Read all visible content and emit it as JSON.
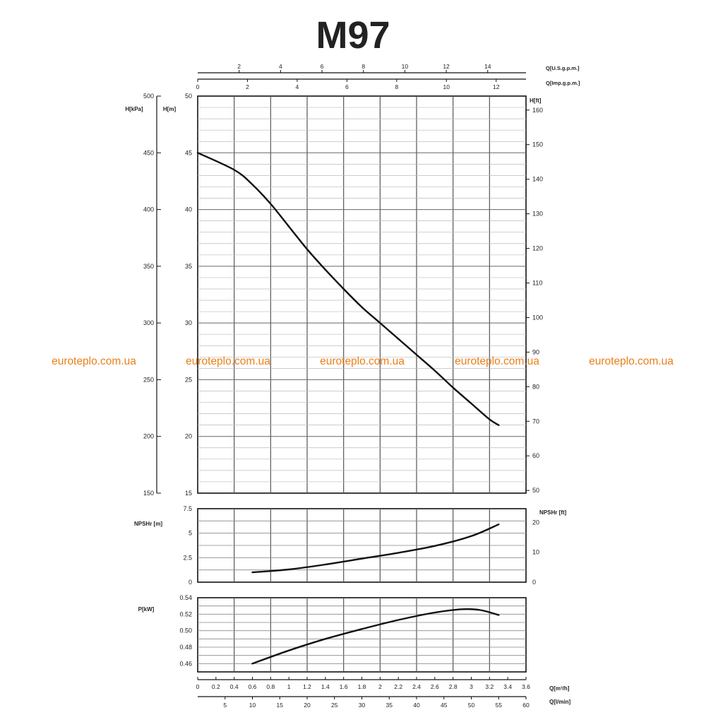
{
  "title": "M97",
  "watermarks": [
    "euroteplo.com.ua",
    "euroteplo.com.ua",
    "euroteplo.com.ua",
    "euroteplo.com.ua",
    "euroteplo.com.ua"
  ],
  "colors": {
    "watermark": "#e8801a",
    "line": "#111111",
    "grid": "#555555"
  },
  "chart_data": [
    {
      "type": "line",
      "id": "head",
      "ylabel_left_outer": "H[kPa]",
      "ylabel_left": "H[m]",
      "ylabel_right": "H[ft]",
      "ylim": [
        15,
        50
      ],
      "y_ticks": [
        "15",
        "20",
        "25",
        "30",
        "35",
        "40",
        "45",
        "50"
      ],
      "y_outer_ticks": [
        "150",
        "200",
        "250",
        "300",
        "350",
        "400",
        "450",
        "500"
      ],
      "y_right_ticks": [
        "50",
        "60",
        "70",
        "80",
        "90",
        "100",
        "110",
        "120",
        "130",
        "140",
        "150",
        "160"
      ],
      "grid": true,
      "series": [
        {
          "x": [
            0,
            0.4,
            0.6,
            0.8,
            1.0,
            1.2,
            1.4,
            1.6,
            1.8,
            2.0,
            2.2,
            2.4,
            2.6,
            2.8,
            3.0,
            3.2,
            3.3
          ],
          "y": [
            45,
            43.5,
            42.2,
            40.5,
            38.5,
            36.5,
            34.7,
            33,
            31.4,
            30,
            28.6,
            27.2,
            25.8,
            24.3,
            22.9,
            21.5,
            21
          ]
        }
      ]
    },
    {
      "type": "line",
      "id": "npsh",
      "ylabel_left": "NPSHr [m]",
      "ylabel_right": "NPSHr [ft]",
      "ylim": [
        0,
        7.5
      ],
      "y_ticks": [
        "0",
        "2.5",
        "5",
        "7.5"
      ],
      "y_right_ticks": [
        "0",
        "10",
        "20"
      ],
      "grid": true,
      "series": [
        {
          "x": [
            0.6,
            1.0,
            1.4,
            1.8,
            2.2,
            2.6,
            3.0,
            3.3
          ],
          "y": [
            1.0,
            1.3,
            1.8,
            2.4,
            3.0,
            3.7,
            4.7,
            5.9
          ]
        }
      ]
    },
    {
      "type": "line",
      "id": "power",
      "ylabel_left": "P[kW]",
      "ylim": [
        0.45,
        0.54
      ],
      "y_ticks": [
        "0.46",
        "0.48",
        "0.50",
        "0.52",
        "0.54"
      ],
      "grid": true,
      "series": [
        {
          "x": [
            0.6,
            1.0,
            1.4,
            1.8,
            2.2,
            2.6,
            2.9,
            3.1,
            3.3
          ],
          "y": [
            0.46,
            0.476,
            0.49,
            0.502,
            0.513,
            0.522,
            0.526,
            0.525,
            0.519
          ]
        }
      ]
    }
  ],
  "x_axes": {
    "primary": {
      "label": "Q[m³/h]",
      "range": [
        0,
        3.6
      ],
      "ticks": [
        "0",
        "0.2",
        "0.4",
        "0.6",
        "0.8",
        "1",
        "1.2",
        "1.4",
        "1.6",
        "1.8",
        "2",
        "2.2",
        "2.4",
        "2.6",
        "2.8",
        "3",
        "3.2",
        "3.4",
        "3.6"
      ]
    },
    "lmin": {
      "label": "Q[l/min]",
      "range": [
        0,
        60
      ],
      "ticks": [
        "5",
        "10",
        "15",
        "20",
        "25",
        "30",
        "35",
        "40",
        "45",
        "50",
        "55",
        "60"
      ]
    },
    "usgpm": {
      "label": "Q[U.S.g.p.m.]",
      "range": [
        0,
        15.85
      ],
      "ticks": [
        "2",
        "4",
        "6",
        "8",
        "10",
        "12",
        "14"
      ]
    },
    "impgpm": {
      "label": "Q[Imp.g.p.m.]",
      "range": [
        0,
        13.2
      ],
      "ticks": [
        "0",
        "2",
        "4",
        "6",
        "8",
        "10",
        "12"
      ]
    }
  }
}
